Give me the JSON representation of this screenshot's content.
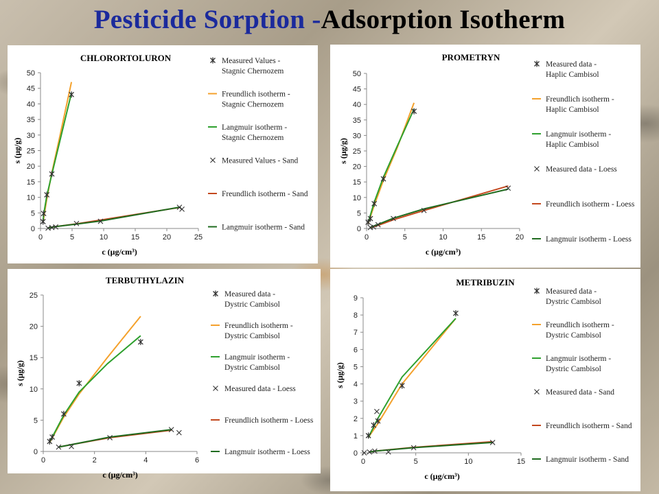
{
  "slide": {
    "title_part1": "Pesticide Sorption -",
    "title_part2": "Adsorption Isotherm"
  },
  "colors": {
    "title_blue": "#1b2a9c",
    "freundlich_orange": "#f4a12c",
    "langmuir_green": "#2ea02e",
    "freundlich_red": "#c3471d",
    "langmuir_darkgreen": "#1f6b1f",
    "marker": "#333333"
  },
  "chart_data": [
    {
      "type": "scatter",
      "title": "CHLORORTOLURON",
      "xlabel": "c (μg/cm³)",
      "ylabel": "s (μg/g)",
      "xlim": [
        0,
        25
      ],
      "ylim": [
        0,
        50
      ],
      "xticks": [
        0,
        5,
        10,
        15,
        20,
        25
      ],
      "yticks": [
        0,
        5,
        10,
        15,
        20,
        25,
        30,
        35,
        40,
        45,
        50
      ],
      "series": [
        {
          "name": "Measured Values - Stagnic Chernozem",
          "kind": "marker",
          "marker": "star",
          "color": "#333333",
          "points": [
            [
              0.4,
              2.2
            ],
            [
              0.5,
              4.8
            ],
            [
              1.0,
              10.8
            ],
            [
              1.8,
              17.5
            ],
            [
              4.9,
              43.0
            ]
          ]
        },
        {
          "name": "Freundlich isotherm - Stagnic Chernozem",
          "kind": "line",
          "color": "#f4a12c",
          "points": [
            [
              0.4,
              2.0
            ],
            [
              1.0,
              9.5
            ],
            [
              1.8,
              18.0
            ],
            [
              3.0,
              29.0
            ],
            [
              4.9,
              47.0
            ]
          ]
        },
        {
          "name": "Langmuir isotherm - Stagnic Chernozem",
          "kind": "line",
          "color": "#2ea02e",
          "points": [
            [
              0.4,
              2.2
            ],
            [
              0.5,
              4.5
            ],
            [
              1.0,
              10.5
            ],
            [
              1.8,
              17.5
            ],
            [
              4.9,
              43.5
            ]
          ]
        },
        {
          "name": "Measured Values - Sand",
          "kind": "marker",
          "marker": "x",
          "color": "#333333",
          "points": [
            [
              1.2,
              0.1
            ],
            [
              1.8,
              0.3
            ],
            [
              2.4,
              0.5
            ],
            [
              5.7,
              1.6
            ],
            [
              9.5,
              2.3
            ],
            [
              22.0,
              6.8
            ],
            [
              22.4,
              6.2
            ]
          ]
        },
        {
          "name": "Freundlich isotherm - Sand",
          "kind": "line",
          "color": "#c3471d",
          "points": [
            [
              1.2,
              0.2
            ],
            [
              2.4,
              0.6
            ],
            [
              5.7,
              1.5
            ],
            [
              9.5,
              2.7
            ],
            [
              22.2,
              6.8
            ]
          ]
        },
        {
          "name": "Langmuir isotherm - Sand",
          "kind": "line",
          "color": "#1f6b1f",
          "points": [
            [
              1.2,
              0.2
            ],
            [
              2.4,
              0.6
            ],
            [
              5.7,
              1.4
            ],
            [
              9.5,
              2.4
            ],
            [
              22.2,
              6.9
            ]
          ]
        }
      ]
    },
    {
      "type": "scatter",
      "title": "PROMETRYN",
      "xlabel": "c (μg/cm³)",
      "ylabel": "s (μg/g)",
      "xlim": [
        0,
        20
      ],
      "ylim": [
        0,
        50
      ],
      "xticks": [
        0,
        5,
        10,
        15,
        20
      ],
      "yticks": [
        0,
        5,
        10,
        15,
        20,
        25,
        30,
        35,
        40,
        45,
        50
      ],
      "series": [
        {
          "name": "Measured data - Haplic Cambisol",
          "kind": "marker",
          "marker": "star",
          "color": "#333333",
          "points": [
            [
              0.2,
              2.0
            ],
            [
              0.5,
              3.2
            ],
            [
              1.0,
              8.0
            ],
            [
              2.2,
              16.0
            ],
            [
              6.2,
              37.8
            ]
          ]
        },
        {
          "name": "Freundlich isotherm - Haplic Cambisol",
          "kind": "line",
          "color": "#f4a12c",
          "points": [
            [
              0.2,
              1.5
            ],
            [
              1.0,
              7.5
            ],
            [
              2.2,
              15.5
            ],
            [
              4.0,
              26.0
            ],
            [
              6.2,
              40.5
            ]
          ]
        },
        {
          "name": "Langmuir isotherm - Haplic Cambisol",
          "kind": "line",
          "color": "#2ea02e",
          "points": [
            [
              0.2,
              1.8
            ],
            [
              1.0,
              8.5
            ],
            [
              2.2,
              16.5
            ],
            [
              4.0,
              26.5
            ],
            [
              6.2,
              38.5
            ]
          ]
        },
        {
          "name": "Measured data - Loess",
          "kind": "marker",
          "marker": "x",
          "color": "#333333",
          "points": [
            [
              0.5,
              0.3
            ],
            [
              0.9,
              0.5
            ],
            [
              1.5,
              1.2
            ],
            [
              3.5,
              3.2
            ],
            [
              7.5,
              5.8
            ],
            [
              18.5,
              13.0
            ]
          ]
        },
        {
          "name": "Freundlich isotherm - Loess",
          "kind": "line",
          "color": "#c3471d",
          "points": [
            [
              0.5,
              0.3
            ],
            [
              1.5,
              1.0
            ],
            [
              3.5,
              2.8
            ],
            [
              7.5,
              5.8
            ],
            [
              18.5,
              13.7
            ]
          ]
        },
        {
          "name": "Langmuir isotherm - Loess",
          "kind": "line",
          "color": "#1f6b1f",
          "points": [
            [
              0.5,
              0.4
            ],
            [
              1.5,
              1.3
            ],
            [
              3.5,
              3.3
            ],
            [
              7.5,
              6.3
            ],
            [
              18.5,
              12.7
            ]
          ]
        }
      ]
    },
    {
      "type": "scatter",
      "title": "TERBUTHYLAZIN",
      "xlabel": "c (μg/cm³)",
      "ylabel": "s (μg/g)",
      "xlim": [
        0,
        6
      ],
      "ylim": [
        0,
        25
      ],
      "xticks": [
        0,
        2,
        4,
        6
      ],
      "yticks": [
        0,
        5,
        10,
        15,
        20,
        25
      ],
      "series": [
        {
          "name": "Measured data - Dystric Cambisol",
          "kind": "marker",
          "marker": "star",
          "color": "#333333",
          "points": [
            [
              0.25,
              1.6
            ],
            [
              0.35,
              2.3
            ],
            [
              0.8,
              6.0
            ],
            [
              1.4,
              10.9
            ],
            [
              3.8,
              17.5
            ]
          ]
        },
        {
          "name": "Freundlich isotherm - Dystric Cambisol",
          "kind": "line",
          "color": "#f4a12c",
          "points": [
            [
              0.25,
              1.4
            ],
            [
              0.8,
              5.5
            ],
            [
              1.4,
              9.2
            ],
            [
              2.5,
              15.0
            ],
            [
              3.8,
              21.6
            ]
          ]
        },
        {
          "name": "Langmuir isotherm - Dystric Cambisol",
          "kind": "line",
          "color": "#2ea02e",
          "points": [
            [
              0.25,
              1.5
            ],
            [
              0.8,
              5.8
            ],
            [
              1.4,
              9.5
            ],
            [
              2.5,
              14.0
            ],
            [
              3.8,
              18.5
            ]
          ]
        },
        {
          "name": "Measured data - Loess",
          "kind": "marker",
          "marker": "x",
          "color": "#333333",
          "points": [
            [
              0.6,
              0.7
            ],
            [
              1.1,
              0.8
            ],
            [
              2.6,
              2.2
            ],
            [
              5.0,
              3.5
            ],
            [
              5.3,
              3.0
            ]
          ]
        },
        {
          "name": "Freundlich isotherm - Loess",
          "kind": "line",
          "color": "#c3471d",
          "points": [
            [
              0.6,
              0.7
            ],
            [
              1.1,
              1.1
            ],
            [
              2.6,
              2.2
            ],
            [
              5.0,
              3.4
            ]
          ]
        },
        {
          "name": "Langmuir isotherm - Loess",
          "kind": "line",
          "color": "#1f6b1f",
          "points": [
            [
              0.6,
              0.7
            ],
            [
              1.1,
              1.1
            ],
            [
              2.6,
              2.3
            ],
            [
              5.0,
              3.5
            ]
          ]
        }
      ]
    },
    {
      "type": "scatter",
      "title": "METRIBUZIN",
      "xlabel": "c (μg/cm³)",
      "ylabel": "s (μg/g)",
      "xlim": [
        0,
        15
      ],
      "ylim": [
        0,
        9
      ],
      "xticks": [
        0,
        5,
        10,
        15
      ],
      "yticks": [
        0,
        1,
        2,
        3,
        4,
        5,
        6,
        7,
        8,
        9
      ],
      "series": [
        {
          "name": "Measured data - Dystric Cambisol",
          "kind": "marker",
          "marker": "star",
          "color": "#333333",
          "points": [
            [
              0.5,
              1.0
            ],
            [
              1.0,
              1.6
            ],
            [
              1.4,
              1.85
            ],
            [
              3.7,
              3.9
            ],
            [
              8.8,
              8.1
            ]
          ]
        },
        {
          "name": "Freundlich isotherm - Dystric Cambisol",
          "kind": "line",
          "color": "#f4a12c",
          "points": [
            [
              0.5,
              0.9
            ],
            [
              1.4,
              1.7
            ],
            [
              3.7,
              4.0
            ],
            [
              8.8,
              7.8
            ]
          ]
        },
        {
          "name": "Langmuir isotherm - Dystric Cambisol",
          "kind": "line",
          "color": "#2ea02e",
          "points": [
            [
              0.5,
              0.9
            ],
            [
              1.4,
              2.0
            ],
            [
              3.7,
              4.4
            ],
            [
              8.8,
              7.8
            ]
          ]
        },
        {
          "name": "Measured data - Sand",
          "kind": "marker",
          "marker": "x",
          "color": "#333333",
          "points": [
            [
              0.1,
              0.0
            ],
            [
              0.6,
              0.05
            ],
            [
              1.1,
              0.1
            ],
            [
              2.4,
              0.05
            ],
            [
              4.8,
              0.3
            ],
            [
              12.3,
              0.6
            ],
            [
              1.3,
              2.4
            ]
          ]
        },
        {
          "name": "Freundlich isotherm - Sand",
          "kind": "line",
          "color": "#c3471d",
          "points": [
            [
              0.6,
              0.05
            ],
            [
              1.1,
              0.1
            ],
            [
              4.8,
              0.32
            ],
            [
              12.3,
              0.65
            ]
          ]
        },
        {
          "name": "Langmuir isotherm - Sand",
          "kind": "line",
          "color": "#1f6b1f",
          "points": [
            [
              0.6,
              0.05
            ],
            [
              1.1,
              0.1
            ],
            [
              4.8,
              0.3
            ],
            [
              12.3,
              0.6
            ]
          ]
        }
      ]
    }
  ]
}
